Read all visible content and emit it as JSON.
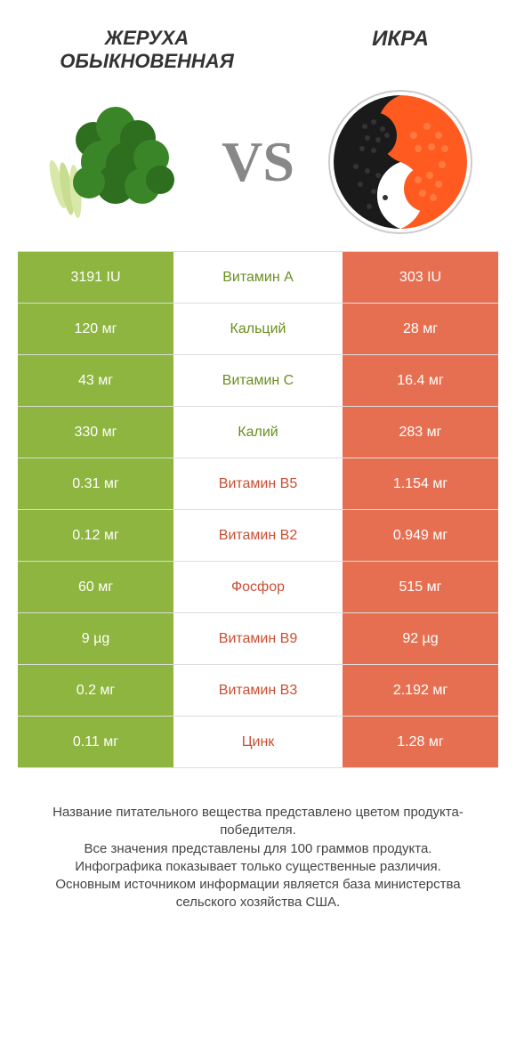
{
  "colors": {
    "green": "#8eb53f",
    "orange": "#e76f51",
    "green_text": "#6a8f1f",
    "orange_text": "#c94f33",
    "white": "#ffffff",
    "border": "#dddddd"
  },
  "header": {
    "left_title": "ЖЕРУХА ОБЫКНОВЕННАЯ",
    "right_title": "ИКРА",
    "vs": "VS"
  },
  "rows": [
    {
      "nutrient": "Витамин A",
      "left": "3191 IU",
      "right": "303 IU",
      "winner": "left"
    },
    {
      "nutrient": "Кальций",
      "left": "120 мг",
      "right": "28 мг",
      "winner": "left"
    },
    {
      "nutrient": "Витамин C",
      "left": "43 мг",
      "right": "16.4 мг",
      "winner": "left"
    },
    {
      "nutrient": "Калий",
      "left": "330 мг",
      "right": "283 мг",
      "winner": "left"
    },
    {
      "nutrient": "Витамин B5",
      "left": "0.31 мг",
      "right": "1.154 мг",
      "winner": "right"
    },
    {
      "nutrient": "Витамин B2",
      "left": "0.12 мг",
      "right": "0.949 мг",
      "winner": "right"
    },
    {
      "nutrient": "Фосфор",
      "left": "60 мг",
      "right": "515 мг",
      "winner": "right"
    },
    {
      "nutrient": "Витамин B9",
      "left": "9 µg",
      "right": "92 µg",
      "winner": "right"
    },
    {
      "nutrient": "Витамин B3",
      "left": "0.2 мг",
      "right": "2.192 мг",
      "winner": "right"
    },
    {
      "nutrient": "Цинк",
      "left": "0.11 мг",
      "right": "1.28 мг",
      "winner": "right"
    }
  ],
  "footer": {
    "line1": "Название питательного вещества представлено цветом продукта-победителя.",
    "line2": "Все значения представлены для 100 граммов продукта.",
    "line3": "Инфографика показывает только существенные различия.",
    "line4": "Основным источником информации является база министерства сельского хозяйства США."
  }
}
